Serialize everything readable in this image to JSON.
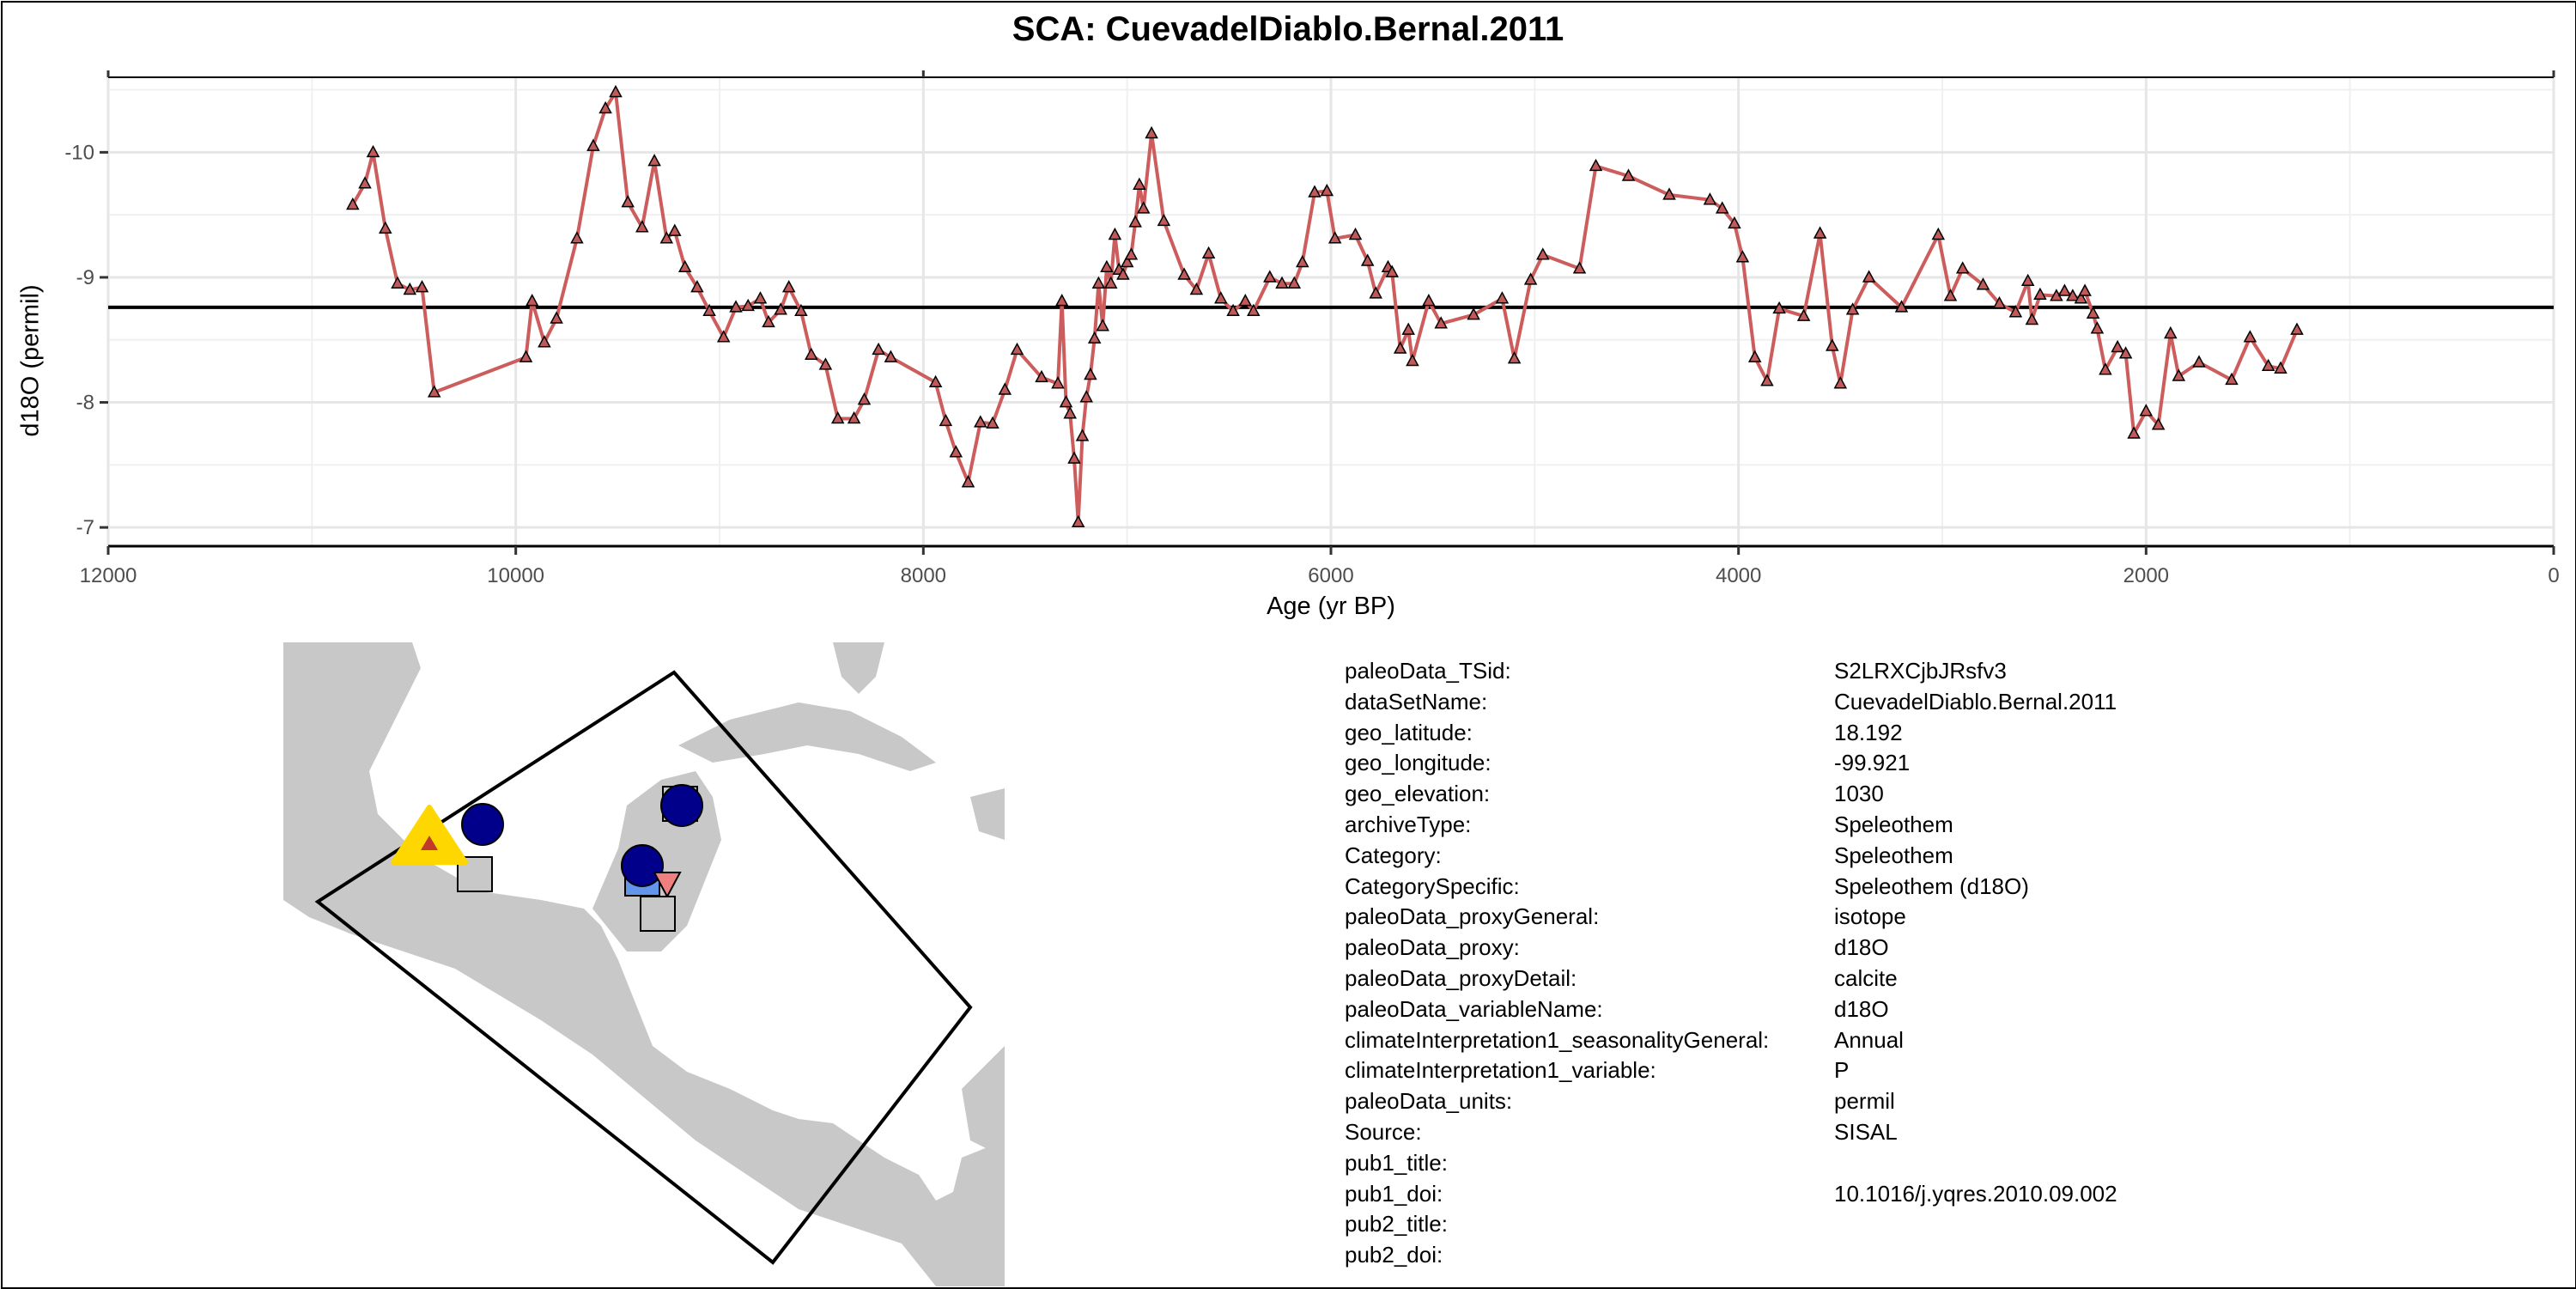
{
  "chart_data": {
    "type": "line",
    "title": "SCA: CuevadelDiablo.Bernal.2011",
    "xlabel": "Age (yr BP)",
    "ylabel": "d18O (permil)",
    "xlim": [
      12000,
      0
    ],
    "ylim": [
      -6.85,
      -10.6
    ],
    "x_reversed": true,
    "y_reversed": true,
    "xticks": [
      12000,
      10000,
      8000,
      6000,
      4000,
      2000,
      0
    ],
    "yticks": [
      -10,
      -9,
      -8,
      -7
    ],
    "ytick_labels": [
      "-10",
      "-9",
      "-8",
      "-7"
    ],
    "grid": true,
    "reference_line": -8.76,
    "line_color": "#cd5c5c",
    "marker": "triangle",
    "series": [
      {
        "x": [
          10800,
          10740,
          10700,
          10640,
          10580,
          10520,
          10460,
          10400,
          9950,
          9920,
          9860,
          9800,
          9700,
          9620,
          9560,
          9510,
          9450,
          9380,
          9320,
          9260,
          9220,
          9170,
          9110,
          9050,
          8980,
          8920,
          8860,
          8800,
          8760,
          8700,
          8660,
          8600,
          8550,
          8480,
          8420,
          8340,
          8290,
          8220,
          8160,
          7940,
          7890,
          7840,
          7780,
          7720,
          7660,
          7600,
          7540,
          7420,
          7340,
          7320,
          7300,
          7280,
          7260,
          7240,
          7220,
          7200,
          7180,
          7160,
          7140,
          7120,
          7100,
          7080,
          7060,
          7040,
          7020,
          7000,
          6980,
          6960,
          6940,
          6920,
          6880,
          6820,
          6720,
          6660,
          6600,
          6540,
          6480,
          6420,
          6380,
          6300,
          6240,
          6180,
          6140,
          6080,
          6020,
          5980,
          5880,
          5820,
          5780,
          5720,
          5700,
          5660,
          5620,
          5600,
          5520,
          5460,
          5300,
          5160,
          5100,
          5020,
          4960,
          4780,
          4700,
          4540,
          4340,
          4140,
          4080,
          4020,
          3980,
          3920,
          3860,
          3800,
          3680,
          3600,
          3540,
          3500,
          3440,
          3360,
          3200,
          3020,
          2960,
          2900,
          2800,
          2720,
          2640,
          2580,
          2560,
          2520,
          2440,
          2400,
          2360,
          2320,
          2300,
          2260,
          2240,
          2200,
          2140,
          2100,
          2060,
          2000,
          1940,
          1880,
          1840,
          1740,
          1580,
          1490,
          1400,
          1340,
          1260
        ],
        "y": [
          -9.58,
          -9.75,
          -10.0,
          -9.39,
          -8.95,
          -8.9,
          -8.92,
          -8.08,
          -8.36,
          -8.81,
          -8.48,
          -8.67,
          -9.31,
          -10.05,
          -10.35,
          -10.48,
          -9.6,
          -9.4,
          -9.93,
          -9.31,
          -9.37,
          -9.08,
          -8.92,
          -8.73,
          -8.52,
          -8.76,
          -8.77,
          -8.83,
          -8.64,
          -8.74,
          -8.92,
          -8.73,
          -8.38,
          -8.3,
          -7.87,
          -7.87,
          -8.02,
          -8.42,
          -8.36,
          -8.16,
          -7.85,
          -7.6,
          -7.36,
          -7.84,
          -7.83,
          -8.1,
          -8.42,
          -8.2,
          -8.15,
          -8.81,
          -8.0,
          -7.91,
          -7.55,
          -7.04,
          -7.73,
          -8.04,
          -8.22,
          -8.51,
          -8.95,
          -8.61,
          -9.08,
          -8.95,
          -9.34,
          -9.06,
          -9.02,
          -9.12,
          -9.18,
          -9.44,
          -9.74,
          -9.55,
          -10.15,
          -9.45,
          -9.02,
          -8.9,
          -9.19,
          -8.83,
          -8.73,
          -8.81,
          -8.73,
          -9.0,
          -8.95,
          -8.95,
          -9.12,
          -9.68,
          -9.69,
          -9.31,
          -9.34,
          -9.13,
          -8.87,
          -9.08,
          -9.04,
          -8.43,
          -8.58,
          -8.33,
          -8.81,
          -8.63,
          -8.7,
          -8.83,
          -8.35,
          -8.98,
          -9.18,
          -9.07,
          -9.89,
          -9.81,
          -9.66,
          -9.62,
          -9.55,
          -9.43,
          -9.16,
          -8.36,
          -8.17,
          -8.75,
          -8.69,
          -9.35,
          -8.45,
          -8.15,
          -8.74,
          -9.0,
          -8.76,
          -9.34,
          -8.85,
          -9.07,
          -8.94,
          -8.79,
          -8.72,
          -8.97,
          -8.66,
          -8.86,
          -8.85,
          -8.89,
          -8.85,
          -8.83,
          -8.89,
          -8.71,
          -8.59,
          -8.26,
          -8.44,
          -8.39,
          -7.75,
          -7.93,
          -7.82,
          -8.55,
          -8.21,
          -8.32,
          -8.18,
          -8.52,
          -8.29,
          -8.27,
          -8.58
        ]
      }
    ]
  },
  "map": {
    "land_color": "#c8c8c8",
    "region_outline_color": "#000000",
    "highlight_color": "#ffd700",
    "highlight_inner_color": "#c0392b",
    "site_circle_color": "#00008b",
    "site_square_color": "#c8c8c8",
    "site_square_blue_color": "#6495ed",
    "site_triangle_down_color": "#f08080"
  },
  "metadata": [
    {
      "key": "paleoData_TSid:",
      "value": "S2LRXCjbJRsfv3"
    },
    {
      "key": "dataSetName:",
      "value": "CuevadelDiablo.Bernal.2011"
    },
    {
      "key": "geo_latitude:",
      "value": "18.192"
    },
    {
      "key": "geo_longitude:",
      "value": "-99.921"
    },
    {
      "key": "geo_elevation:",
      "value": "1030"
    },
    {
      "key": "archiveType:",
      "value": "Speleothem"
    },
    {
      "key": "Category:",
      "value": "Speleothem"
    },
    {
      "key": "CategorySpecific:",
      "value": "Speleothem (d18O)"
    },
    {
      "key": "paleoData_proxyGeneral:",
      "value": "isotope"
    },
    {
      "key": "paleoData_proxy:",
      "value": "d18O"
    },
    {
      "key": "paleoData_proxyDetail:",
      "value": "calcite"
    },
    {
      "key": "paleoData_variableName:",
      "value": "d18O"
    },
    {
      "key": "climateInterpretation1_seasonalityGeneral:",
      "value": "Annual"
    },
    {
      "key": "climateInterpretation1_variable:",
      "value": "P"
    },
    {
      "key": "paleoData_units:",
      "value": "permil"
    },
    {
      "key": "Source:",
      "value": "SISAL"
    },
    {
      "key": "pub1_title:",
      "value": ""
    },
    {
      "key": "pub1_doi:",
      "value": "10.1016/j.yqres.2010.09.002"
    },
    {
      "key": "pub2_title:",
      "value": ""
    },
    {
      "key": "pub2_doi:",
      "value": ""
    }
  ]
}
